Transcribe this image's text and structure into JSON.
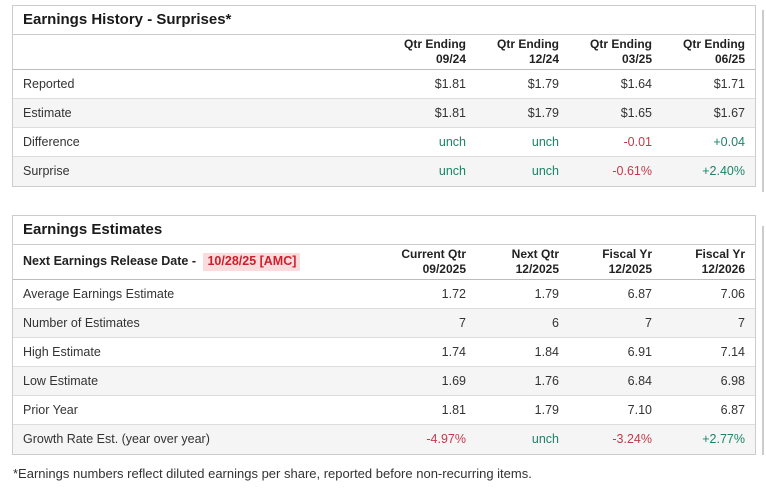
{
  "colors": {
    "positive": "#1c8468",
    "negative": "#c23a4b",
    "date_highlight_bg": "#fbdcdc",
    "date_highlight_text": "#cc1f2d",
    "panel_border": "#cccccc",
    "alt_row_bg": "#f5f5f5",
    "text": "#333333"
  },
  "history": {
    "title": "Earnings History - Surprises*",
    "columns": [
      {
        "line1": "Qtr Ending",
        "line2": "09/24"
      },
      {
        "line1": "Qtr Ending",
        "line2": "12/24"
      },
      {
        "line1": "Qtr Ending",
        "line2": "03/25"
      },
      {
        "line1": "Qtr Ending",
        "line2": "06/25"
      }
    ],
    "rows": [
      {
        "label": "Reported",
        "values": [
          {
            "text": "$1.81",
            "tone": ""
          },
          {
            "text": "$1.79",
            "tone": ""
          },
          {
            "text": "$1.64",
            "tone": ""
          },
          {
            "text": "$1.71",
            "tone": ""
          }
        ]
      },
      {
        "label": "Estimate",
        "values": [
          {
            "text": "$1.81",
            "tone": ""
          },
          {
            "text": "$1.79",
            "tone": ""
          },
          {
            "text": "$1.65",
            "tone": ""
          },
          {
            "text": "$1.67",
            "tone": ""
          }
        ]
      },
      {
        "label": "Difference",
        "values": [
          {
            "text": "unch",
            "tone": "pos"
          },
          {
            "text": "unch",
            "tone": "pos"
          },
          {
            "text": "-0.01",
            "tone": "neg"
          },
          {
            "text": "+0.04",
            "tone": "pos"
          }
        ]
      },
      {
        "label": "Surprise",
        "values": [
          {
            "text": "unch",
            "tone": "pos"
          },
          {
            "text": "unch",
            "tone": "pos"
          },
          {
            "text": "-0.61%",
            "tone": "neg"
          },
          {
            "text": "+2.40%",
            "tone": "pos"
          }
        ]
      }
    ]
  },
  "estimates": {
    "title": "Earnings Estimates",
    "release_label": "Next Earnings Release Date -",
    "release_date": "10/28/25 [AMC]",
    "columns": [
      {
        "line1": "Current Qtr",
        "line2": "09/2025"
      },
      {
        "line1": "Next Qtr",
        "line2": "12/2025"
      },
      {
        "line1": "Fiscal Yr",
        "line2": "12/2025"
      },
      {
        "line1": "Fiscal Yr",
        "line2": "12/2026"
      }
    ],
    "rows": [
      {
        "label": "Average Earnings Estimate",
        "values": [
          {
            "text": "1.72",
            "tone": ""
          },
          {
            "text": "1.79",
            "tone": ""
          },
          {
            "text": "6.87",
            "tone": ""
          },
          {
            "text": "7.06",
            "tone": ""
          }
        ]
      },
      {
        "label": "Number of Estimates",
        "values": [
          {
            "text": "7",
            "tone": ""
          },
          {
            "text": "6",
            "tone": ""
          },
          {
            "text": "7",
            "tone": ""
          },
          {
            "text": "7",
            "tone": ""
          }
        ]
      },
      {
        "label": "High Estimate",
        "values": [
          {
            "text": "1.74",
            "tone": ""
          },
          {
            "text": "1.84",
            "tone": ""
          },
          {
            "text": "6.91",
            "tone": ""
          },
          {
            "text": "7.14",
            "tone": ""
          }
        ]
      },
      {
        "label": "Low Estimate",
        "values": [
          {
            "text": "1.69",
            "tone": ""
          },
          {
            "text": "1.76",
            "tone": ""
          },
          {
            "text": "6.84",
            "tone": ""
          },
          {
            "text": "6.98",
            "tone": ""
          }
        ]
      },
      {
        "label": "Prior Year",
        "values": [
          {
            "text": "1.81",
            "tone": ""
          },
          {
            "text": "1.79",
            "tone": ""
          },
          {
            "text": "7.10",
            "tone": ""
          },
          {
            "text": "6.87",
            "tone": ""
          }
        ]
      },
      {
        "label": "Growth Rate Est. (year over year)",
        "values": [
          {
            "text": "-4.97%",
            "tone": "neg"
          },
          {
            "text": "unch",
            "tone": "pos"
          },
          {
            "text": "-3.24%",
            "tone": "neg"
          },
          {
            "text": "+2.77%",
            "tone": "pos"
          }
        ]
      }
    ]
  },
  "footnote": "*Earnings numbers reflect diluted earnings per share, reported before non-recurring items."
}
